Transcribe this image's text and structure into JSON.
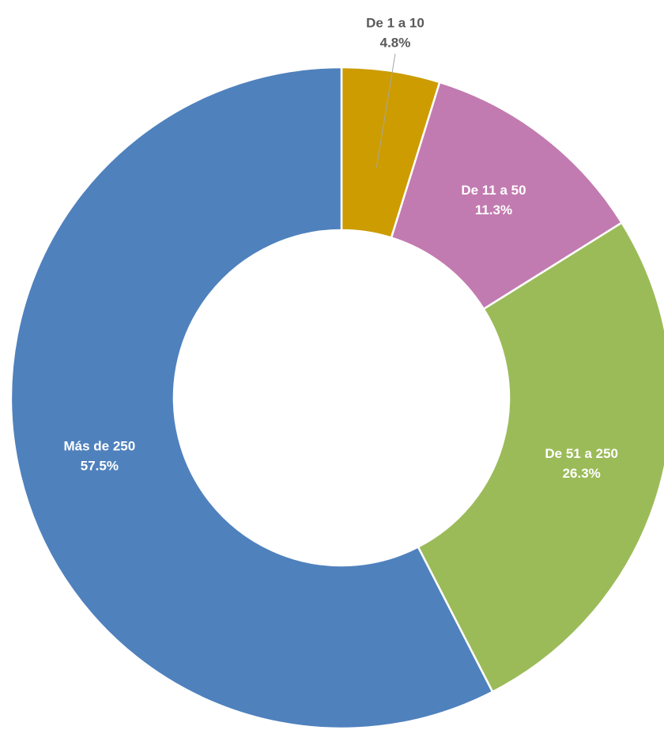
{
  "chart_data": {
    "type": "donut",
    "categories": [
      "De 1 a 10",
      "De 11 a 50",
      "De 51 a 250",
      "Más de 250"
    ],
    "values": [
      4.8,
      11.3,
      26.3,
      57.5
    ],
    "value_labels": [
      "4.8%",
      "11.3%",
      "26.3%",
      "57.5%"
    ],
    "colors": [
      "#cc9c00",
      "#c27bb0",
      "#9bbb59",
      "#4f81bd"
    ]
  }
}
